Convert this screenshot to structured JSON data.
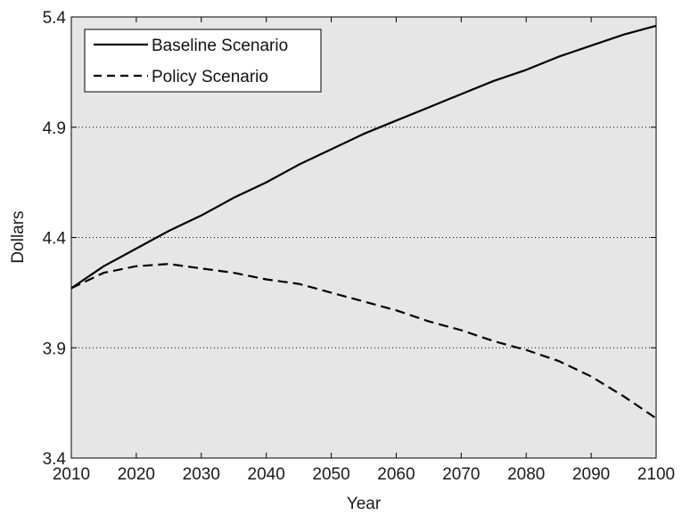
{
  "chart_data": {
    "type": "line",
    "xlabel": "Year",
    "ylabel": "Dollars",
    "xlim": [
      2010,
      2100
    ],
    "ylim": [
      3.4,
      5.4
    ],
    "xticks": [
      "2010",
      "2020",
      "2030",
      "2040",
      "2050",
      "2060",
      "2070",
      "2080",
      "2090",
      "2100"
    ],
    "yticks": [
      "3.4",
      "3.9",
      "4.4",
      "4.9",
      "5.4"
    ],
    "grid": "horizontal-dotted",
    "legend_position": "top-left",
    "plot_background": "#e6e6e6",
    "line_color": "#000000",
    "x": [
      2010,
      2015,
      2020,
      2025,
      2030,
      2035,
      2040,
      2045,
      2050,
      2055,
      2060,
      2065,
      2070,
      2075,
      2080,
      2085,
      2090,
      2095,
      2100
    ],
    "series": [
      {
        "name": "Baseline Scenario",
        "style": "solid",
        "values": [
          4.17,
          4.27,
          4.35,
          4.43,
          4.5,
          4.58,
          4.65,
          4.73,
          4.8,
          4.87,
          4.93,
          4.99,
          5.05,
          5.11,
          5.16,
          5.22,
          5.27,
          5.32,
          5.36
        ]
      },
      {
        "name": "Policy Scenario",
        "style": "dashed",
        "values": [
          4.17,
          4.24,
          4.27,
          4.28,
          4.26,
          4.24,
          4.21,
          4.19,
          4.15,
          4.11,
          4.07,
          4.02,
          3.98,
          3.93,
          3.89,
          3.84,
          3.77,
          3.68,
          3.58
        ]
      }
    ]
  }
}
